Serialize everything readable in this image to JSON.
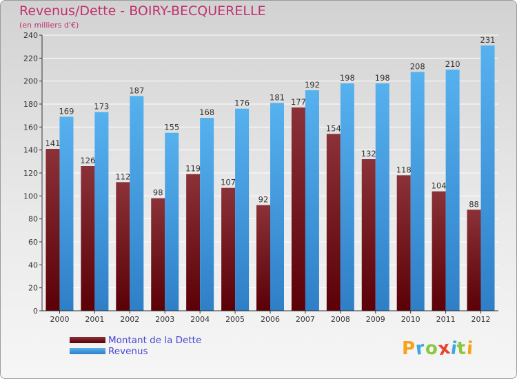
{
  "chart_data": {
    "type": "bar",
    "title": "Revenus/Dette - BOIRY-BECQUERELLE",
    "subtitle": "(en milliers d'€)",
    "categories": [
      "2000",
      "2001",
      "2002",
      "2003",
      "2004",
      "2005",
      "2006",
      "2007",
      "2008",
      "2009",
      "2010",
      "2011",
      "2012"
    ],
    "series": [
      {
        "name": "Montant de la Dette",
        "color": "#6b0f14",
        "values": [
          141,
          126,
          112,
          98,
          119,
          107,
          92,
          177,
          154,
          132,
          118,
          104,
          88
        ]
      },
      {
        "name": "Revenus",
        "color": "#4aa3e6",
        "values": [
          169,
          173,
          187,
          155,
          168,
          176,
          181,
          192,
          198,
          198,
          208,
          210,
          231
        ]
      }
    ],
    "ylim": [
      0,
      240
    ],
    "yticks": [
      0,
      20,
      40,
      60,
      80,
      100,
      120,
      140,
      160,
      180,
      200,
      220,
      240
    ],
    "grid": true,
    "legend_position": "bottom-left"
  },
  "logo": {
    "text": "Proxiti"
  },
  "colors": {
    "title": "#c0306f",
    "legend_text": "#4646d6",
    "axis": "#333333",
    "grid": "#ffffff"
  }
}
